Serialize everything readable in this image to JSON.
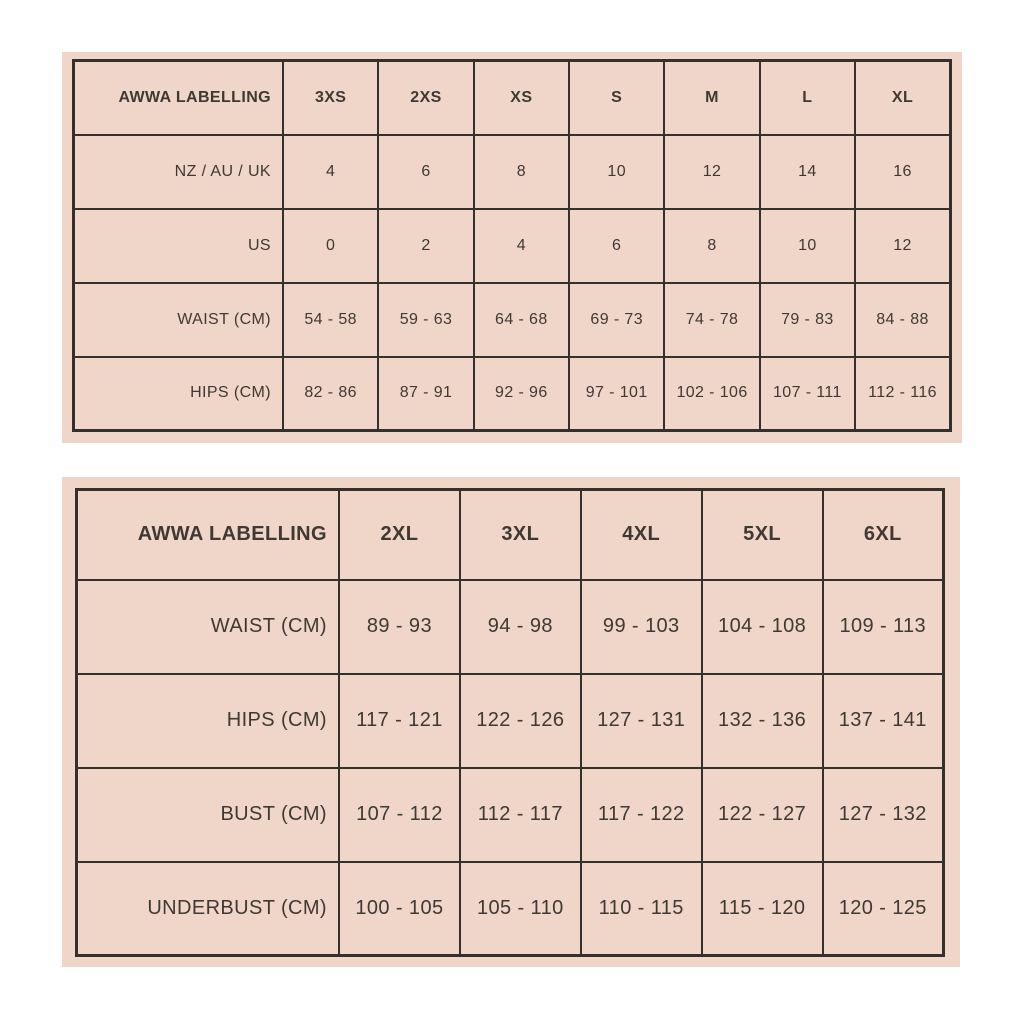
{
  "colors": {
    "page_background": "#ffffff",
    "panel_background": "#f0d6c8",
    "grid_line": "#35302c",
    "text": "#3f3833"
  },
  "chart_data": [
    {
      "type": "table",
      "name": "standard-sizes",
      "header_label": "AWWA LABELLING",
      "columns": [
        "3XS",
        "2XS",
        "XS",
        "S",
        "M",
        "L",
        "XL"
      ],
      "rows": [
        {
          "label": "NZ / AU / UK",
          "values": [
            "4",
            "6",
            "8",
            "10",
            "12",
            "14",
            "16"
          ]
        },
        {
          "label": "US",
          "values": [
            "0",
            "2",
            "4",
            "6",
            "8",
            "10",
            "12"
          ]
        },
        {
          "label": "WAIST (CM)",
          "values": [
            "54 - 58",
            "59 - 63",
            "64 - 68",
            "69 - 73",
            "74 - 78",
            "79 - 83",
            "84 - 88"
          ]
        },
        {
          "label": "HIPS (CM)",
          "values": [
            "82 - 86",
            "87 - 91",
            "92 - 96",
            "97 - 101",
            "102 - 106",
            "107 - 111",
            "112 - 116"
          ]
        }
      ]
    },
    {
      "type": "table",
      "name": "extended-sizes",
      "header_label": "AWWA LABELLING",
      "columns": [
        "2XL",
        "3XL",
        "4XL",
        "5XL",
        "6XL"
      ],
      "rows": [
        {
          "label": "WAIST (CM)",
          "values": [
            "89 - 93",
            "94 - 98",
            "99 - 103",
            "104 - 108",
            "109 - 113"
          ]
        },
        {
          "label": "HIPS (CM)",
          "values": [
            "117 - 121",
            "122 - 126",
            "127 - 131",
            "132 - 136",
            "137 - 141"
          ]
        },
        {
          "label": "BUST (CM)",
          "values": [
            "107 - 112",
            "112 - 117",
            "117 - 122",
            "122 - 127",
            "127 - 132"
          ]
        },
        {
          "label": "UNDERBUST (CM)",
          "values": [
            "100 - 105",
            "105 - 110",
            "110 - 115",
            "115 - 120",
            "120 - 125"
          ]
        }
      ]
    }
  ]
}
